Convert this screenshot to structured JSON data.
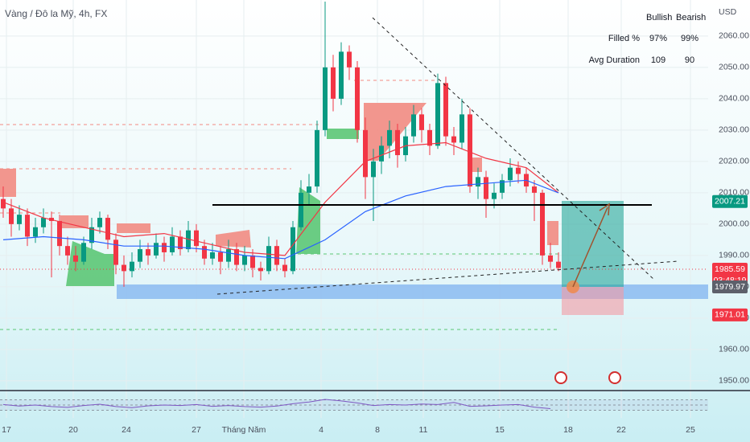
{
  "chart_data": {
    "type": "candlestick",
    "title": "Vàng / Đô la Mỹ, 4h, FX",
    "y_axis_label": "USD",
    "up_color": "#089981",
    "down_color": "#f23645",
    "xlim": [
      -0.4,
      86.6
    ],
    "ylim": [
      1947.4,
      2071.5
    ],
    "grid": true,
    "xticks": [
      {
        "value": 0.4,
        "label": "17"
      },
      {
        "value": 8.7,
        "label": "20"
      },
      {
        "value": 15.3,
        "label": "24"
      },
      {
        "value": 24,
        "label": "27"
      },
      {
        "value": 29.9,
        "label": "Tháng Năm"
      },
      {
        "value": 39.5,
        "label": "4"
      },
      {
        "value": 46.5,
        "label": "8"
      },
      {
        "value": 52.2,
        "label": "11"
      },
      {
        "value": 61.7,
        "label": "15"
      },
      {
        "value": 70.2,
        "label": "18"
      },
      {
        "value": 76.8,
        "label": "22"
      },
      {
        "value": 85.4,
        "label": "25"
      }
    ],
    "yticks": [
      {
        "value": 1950,
        "label": "1950.00"
      },
      {
        "value": 1960,
        "label": "1960.00"
      },
      {
        "value": 1970,
        "label": "1970.00"
      },
      {
        "value": 1980,
        "label": "1980.00"
      },
      {
        "value": 1990,
        "label": "1990.00"
      },
      {
        "value": 2000,
        "label": "2000.00"
      },
      {
        "value": 2010,
        "label": "2010.00"
      },
      {
        "value": 2020,
        "label": "2020.00"
      },
      {
        "value": 2030,
        "label": "2030.00"
      },
      {
        "value": 2040,
        "label": "2040.00"
      },
      {
        "value": 2050,
        "label": "2050.00"
      },
      {
        "value": 2060,
        "label": "2060.00"
      }
    ],
    "candles": [
      {
        "o": 2008,
        "h": 2012,
        "l": 2002,
        "c": 2005
      },
      {
        "o": 2005,
        "h": 2008,
        "l": 1996,
        "c": 2000
      },
      {
        "o": 2000,
        "h": 2006,
        "l": 1998,
        "c": 2003
      },
      {
        "o": 2003,
        "h": 2005,
        "l": 1993,
        "c": 1996
      },
      {
        "o": 1996,
        "h": 2002,
        "l": 1994,
        "c": 1999
      },
      {
        "o": 1999,
        "h": 2005,
        "l": 1997,
        "c": 2002
      },
      {
        "o": 2002,
        "h": 2004,
        "l": 1983,
        "c": 2001
      },
      {
        "o": 2001,
        "h": 2003,
        "l": 1990,
        "c": 1993
      },
      {
        "o": 1993,
        "h": 1996,
        "l": 1987,
        "c": 1990
      },
      {
        "o": 1990,
        "h": 1993,
        "l": 1985,
        "c": 1988
      },
      {
        "o": 1988,
        "h": 1996,
        "l": 1987,
        "c": 1994
      },
      {
        "o": 1994,
        "h": 2002,
        "l": 1992,
        "c": 1999
      },
      {
        "o": 1999,
        "h": 2004,
        "l": 1997,
        "c": 2002
      },
      {
        "o": 2002,
        "h": 2003,
        "l": 1992,
        "c": 1995
      },
      {
        "o": 1995,
        "h": 1997,
        "l": 1984,
        "c": 1987
      },
      {
        "o": 1987,
        "h": 1990,
        "l": 1980,
        "c": 1985
      },
      {
        "o": 1985,
        "h": 1991,
        "l": 1983,
        "c": 1988
      },
      {
        "o": 1988,
        "h": 1995,
        "l": 1986,
        "c": 1992
      },
      {
        "o": 1992,
        "h": 1994,
        "l": 1987,
        "c": 1990
      },
      {
        "o": 1990,
        "h": 1997,
        "l": 1989,
        "c": 1994
      },
      {
        "o": 1994,
        "h": 1996,
        "l": 1988,
        "c": 1991
      },
      {
        "o": 1991,
        "h": 1999,
        "l": 1990,
        "c": 1996
      },
      {
        "o": 1996,
        "h": 1998,
        "l": 1990,
        "c": 1992
      },
      {
        "o": 1992,
        "h": 2001,
        "l": 1991,
        "c": 1998
      },
      {
        "o": 1998,
        "h": 2000,
        "l": 1991,
        "c": 1993
      },
      {
        "o": 1993,
        "h": 1995,
        "l": 1987,
        "c": 1989
      },
      {
        "o": 1989,
        "h": 1994,
        "l": 1987,
        "c": 1991
      },
      {
        "o": 1991,
        "h": 1993,
        "l": 1984,
        "c": 1988
      },
      {
        "o": 1988,
        "h": 1995,
        "l": 1986,
        "c": 1992
      },
      {
        "o": 1992,
        "h": 1994,
        "l": 1985,
        "c": 1987
      },
      {
        "o": 1987,
        "h": 1993,
        "l": 1985,
        "c": 1990
      },
      {
        "o": 1990,
        "h": 1992,
        "l": 1983,
        "c": 1986
      },
      {
        "o": 1986,
        "h": 1988,
        "l": 1982,
        "c": 1985
      },
      {
        "o": 1985,
        "h": 1996,
        "l": 1984,
        "c": 1993
      },
      {
        "o": 1993,
        "h": 1995,
        "l": 1985,
        "c": 1987
      },
      {
        "o": 1987,
        "h": 1989,
        "l": 1983,
        "c": 1985
      },
      {
        "o": 1985,
        "h": 2001,
        "l": 1984,
        "c": 1999
      },
      {
        "o": 1999,
        "h": 2014,
        "l": 1998,
        "c": 2010
      },
      {
        "o": 2010,
        "h": 2016,
        "l": 2006,
        "c": 2012
      },
      {
        "o": 2012,
        "h": 2033,
        "l": 2010,
        "c": 2030
      },
      {
        "o": 2030,
        "h": 2071,
        "l": 2028,
        "c": 2050
      },
      {
        "o": 2050,
        "h": 2054,
        "l": 2036,
        "c": 2040
      },
      {
        "o": 2040,
        "h": 2058,
        "l": 2038,
        "c": 2055
      },
      {
        "o": 2055,
        "h": 2057,
        "l": 2046,
        "c": 2050
      },
      {
        "o": 2050,
        "h": 2052,
        "l": 2026,
        "c": 2030
      },
      {
        "o": 2030,
        "h": 2034,
        "l": 2008,
        "c": 2015
      },
      {
        "o": 2015,
        "h": 2024,
        "l": 2001,
        "c": 2020
      },
      {
        "o": 2020,
        "h": 2028,
        "l": 2016,
        "c": 2025
      },
      {
        "o": 2025,
        "h": 2033,
        "l": 2021,
        "c": 2030
      },
      {
        "o": 2030,
        "h": 2032,
        "l": 2018,
        "c": 2022
      },
      {
        "o": 2022,
        "h": 2031,
        "l": 2020,
        "c": 2028
      },
      {
        "o": 2028,
        "h": 2038,
        "l": 2026,
        "c": 2035
      },
      {
        "o": 2035,
        "h": 2037,
        "l": 2026,
        "c": 2030
      },
      {
        "o": 2030,
        "h": 2032,
        "l": 2022,
        "c": 2025
      },
      {
        "o": 2025,
        "h": 2048,
        "l": 2024,
        "c": 2045
      },
      {
        "o": 2045,
        "h": 2047,
        "l": 2025,
        "c": 2028
      },
      {
        "o": 2028,
        "h": 2031,
        "l": 2022,
        "c": 2026
      },
      {
        "o": 2026,
        "h": 2040,
        "l": 2024,
        "c": 2035
      },
      {
        "o": 2035,
        "h": 2037,
        "l": 2010,
        "c": 2012
      },
      {
        "o": 2012,
        "h": 2018,
        "l": 2008,
        "c": 2015
      },
      {
        "o": 2015,
        "h": 2017,
        "l": 2002,
        "c": 2008
      },
      {
        "o": 2008,
        "h": 2013,
        "l": 2005,
        "c": 2010
      },
      {
        "o": 2010,
        "h": 2016,
        "l": 2008,
        "c": 2014
      },
      {
        "o": 2014,
        "h": 2021,
        "l": 2012,
        "c": 2018
      },
      {
        "o": 2018,
        "h": 2020,
        "l": 2013,
        "c": 2016
      },
      {
        "o": 2016,
        "h": 2018,
        "l": 2010,
        "c": 2012
      },
      {
        "o": 2012,
        "h": 2014,
        "l": 2001,
        "c": 2010
      },
      {
        "o": 2010,
        "h": 2011,
        "l": 1987,
        "c": 1990
      },
      {
        "o": 1990,
        "h": 1994,
        "l": 1986,
        "c": 1988
      },
      {
        "o": 1988,
        "h": 1991,
        "l": 1985,
        "c": 1986
      }
    ],
    "lines": [
      {
        "color": "#f23645",
        "x": [
          0,
          5,
          10,
          15,
          20,
          25,
          30,
          35,
          40,
          45,
          50,
          55,
          60,
          65,
          69
        ],
        "values": [
          2007,
          2002,
          1999,
          1996,
          1997,
          1994,
          1991,
          1990,
          2007,
          2020,
          2025,
          2026,
          2021,
          2018,
          2010
        ]
      },
      {
        "color": "#2962ff",
        "x": [
          0,
          5,
          10,
          15,
          20,
          25,
          30,
          35,
          40,
          45,
          50,
          55,
          60,
          65,
          69
        ],
        "values": [
          1995,
          1996,
          1995,
          1993,
          1993,
          1992,
          1990,
          1989,
          1995,
          2004,
          2009,
          2012,
          2013,
          2014,
          2010
        ]
      }
    ],
    "price_labels": [
      {
        "value": 2007.21,
        "color": "#089981"
      },
      {
        "value": 1985.59,
        "color": "#f23645",
        "countdown": "03:48:19"
      },
      {
        "value": 1979.97,
        "color": "#5d606b"
      },
      {
        "value": 1971.01,
        "color": "#f23645"
      }
    ],
    "rsi": {
      "color": "#7e57c2",
      "ylim": [
        0,
        100
      ],
      "bands": [
        70,
        50,
        30
      ],
      "x": [
        0,
        2,
        4,
        6,
        8,
        10,
        12,
        14,
        16,
        18,
        20,
        22,
        24,
        26,
        28,
        30,
        32,
        34,
        36,
        38,
        40,
        42,
        44,
        46,
        48,
        50,
        52,
        54,
        56,
        58,
        60,
        62,
        64,
        66,
        68
      ],
      "values": [
        52,
        46,
        50,
        44,
        41,
        48,
        53,
        44,
        40,
        47,
        50,
        48,
        52,
        45,
        48,
        44,
        42,
        46,
        55,
        62,
        72,
        66,
        58,
        48,
        52,
        50,
        54,
        52,
        60,
        45,
        47,
        50,
        52,
        42,
        36
      ]
    },
    "table": {
      "header": [
        "Bullish",
        "Bearish"
      ],
      "rows": [
        [
          "Filled %",
          "97%",
          "99%"
        ],
        [
          "Avg Duration",
          "109",
          "90"
        ]
      ]
    }
  }
}
